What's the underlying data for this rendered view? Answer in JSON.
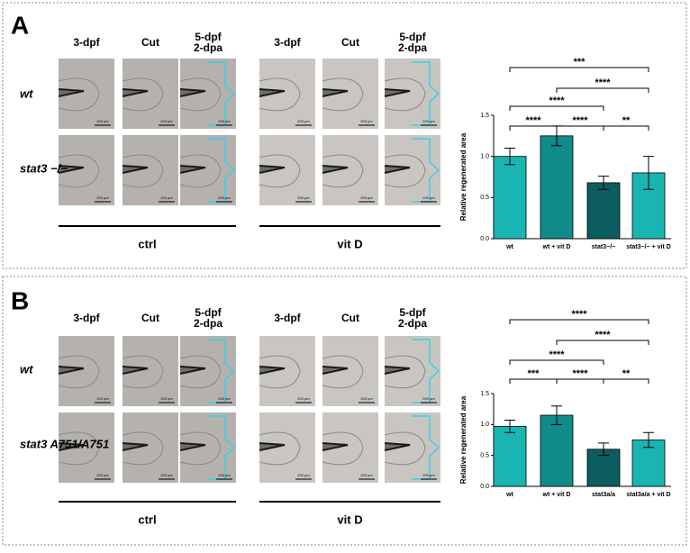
{
  "panels": [
    {
      "letter": "A",
      "columns": [
        "3-dpf",
        "Cut",
        "5-dpf\n2-dpa"
      ],
      "rows": [
        "wt",
        "stat3 −/−"
      ],
      "groups": [
        "ctrl",
        "vit D"
      ],
      "scale_bar": "200 µm"
    },
    {
      "letter": "B",
      "columns": [
        "3-dpf",
        "Cut",
        "5-dpf\n2-dpa"
      ],
      "rows": [
        "wt",
        "stat3 A751/A751"
      ],
      "groups": [
        "ctrl",
        "vit D"
      ],
      "scale_bar": "200 µm"
    }
  ],
  "chart_data": [
    {
      "type": "bar",
      "y_label": "Relative regenerated area",
      "categories": [
        "wt",
        "wt + vit D",
        "stat3−/−",
        "stat3−/− + vit D"
      ],
      "values": [
        1.0,
        1.25,
        0.68,
        0.8
      ],
      "errors": [
        0.1,
        0.12,
        0.08,
        0.2
      ],
      "colors": [
        "#19b5b3",
        "#0f8c8a",
        "#0b5e5d",
        "#19b5b3"
      ],
      "ylim": [
        0,
        1.5
      ],
      "yticks": [
        {
          "value": 0,
          "label": "0.0"
        },
        0.5,
        {
          "value": 1,
          "label": "1.0"
        },
        1.5
      ],
      "annotations": [
        "***",
        "****",
        "****",
        "****",
        "****",
        "**"
      ]
    },
    {
      "type": "bar",
      "y_label": "Relative regenerated area",
      "categories": [
        "wt",
        "wt + vit D",
        "stat3a/a",
        "stat3a/a + vit D"
      ],
      "values": [
        0.97,
        1.15,
        0.6,
        0.75
      ],
      "errors": [
        0.1,
        0.15,
        0.1,
        0.12
      ],
      "colors": [
        "#19b5b3",
        "#0f8c8a",
        "#0b5e5d",
        "#19b5b3"
      ],
      "ylim": [
        0,
        1.5
      ],
      "yticks": [
        {
          "value": 0,
          "label": "0.0"
        },
        0.5,
        {
          "value": 1,
          "label": "1.0"
        },
        1.5
      ],
      "annotations": [
        "****",
        "****",
        "****",
        "***",
        "****",
        "**"
      ]
    }
  ]
}
